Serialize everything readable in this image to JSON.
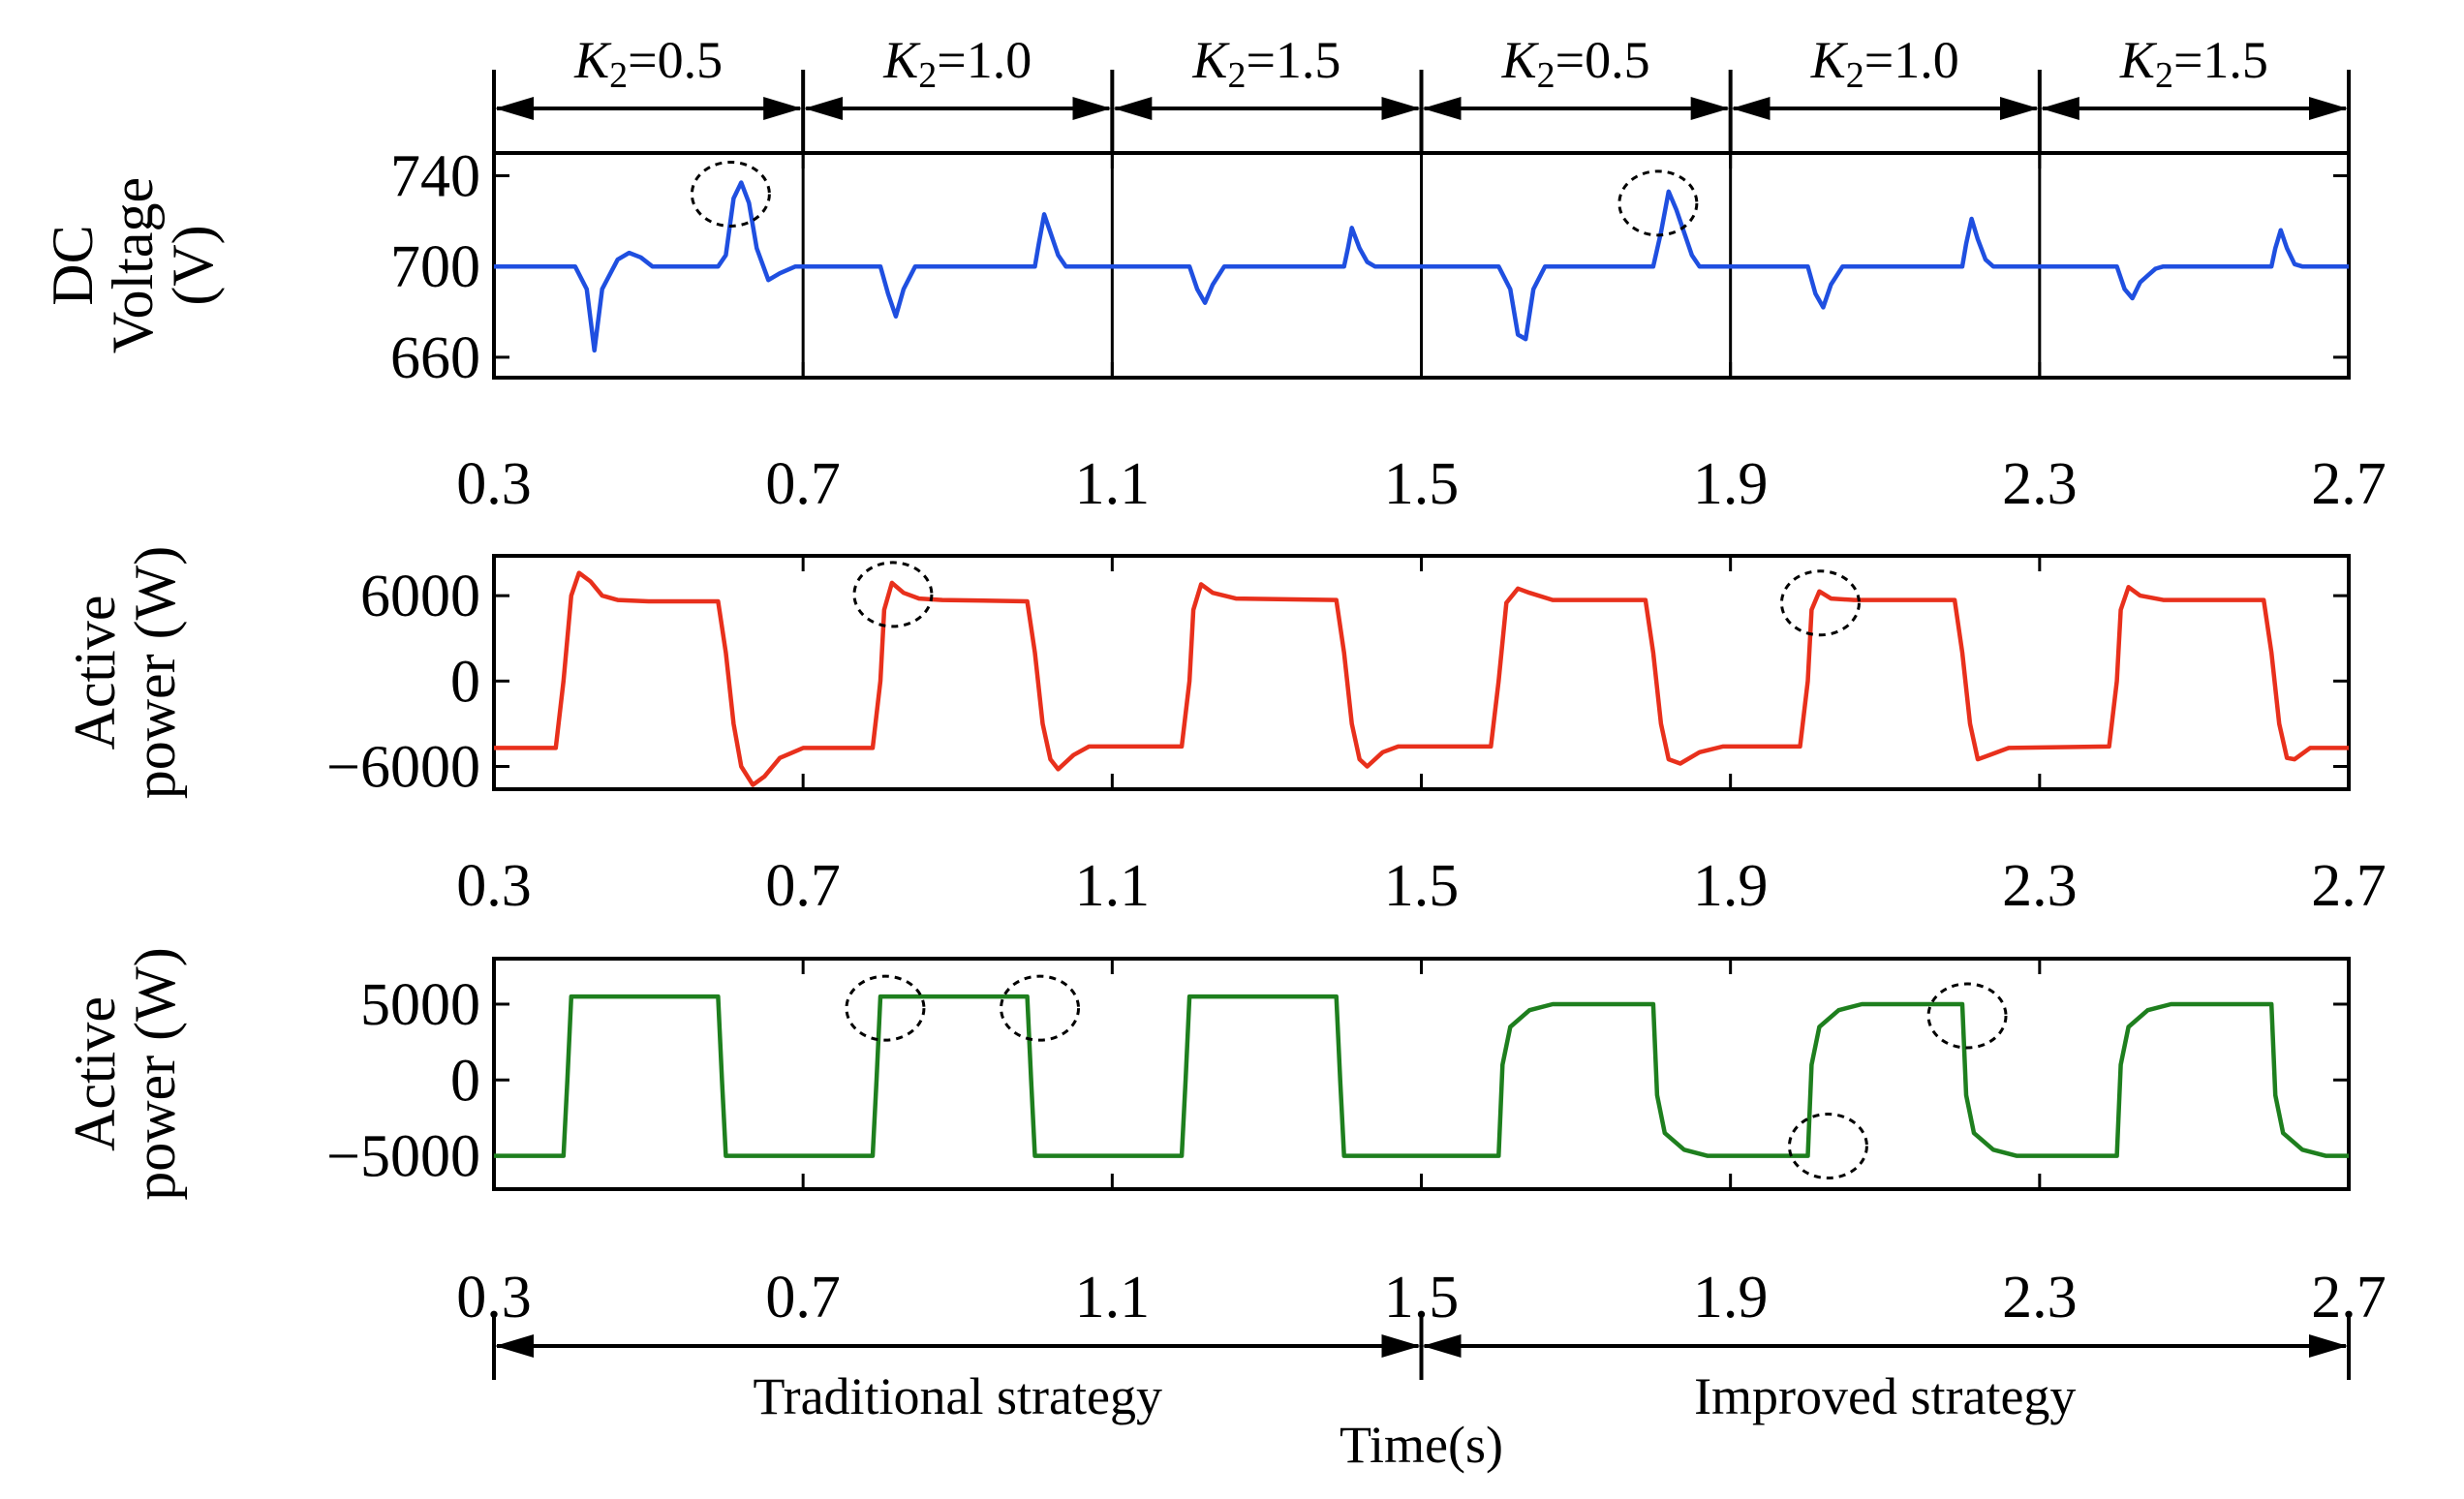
{
  "chart_data": {
    "type": "line",
    "xlabel": "Time(s)",
    "x_ticks": [
      "0.3",
      "0.7",
      "1.1",
      "1.5",
      "1.9",
      "2.3",
      "2.7"
    ],
    "xlim": [
      0.3,
      2.7
    ],
    "segment_labels": [
      {
        "name": "K",
        "sub": "2",
        "value": "=0.5",
        "x0": 0.3,
        "x1": 0.7
      },
      {
        "name": "K",
        "sub": "2",
        "value": "=1.0",
        "x0": 0.7,
        "x1": 1.1
      },
      {
        "name": "K",
        "sub": "2",
        "value": "=1.5",
        "x0": 1.1,
        "x1": 1.5
      },
      {
        "name": "K",
        "sub": "2",
        "value": "=0.5",
        "x0": 1.5,
        "x1": 1.9
      },
      {
        "name": "K",
        "sub": "2",
        "value": "=1.0",
        "x0": 1.9,
        "x1": 2.3
      },
      {
        "name": "K",
        "sub": "2",
        "value": "=1.5",
        "x0": 2.3,
        "x1": 2.7
      }
    ],
    "regions": [
      {
        "label": "Traditional strategy",
        "x0": 0.3,
        "x1": 1.5
      },
      {
        "label": "Improved strategy",
        "x0": 1.5,
        "x1": 2.7
      }
    ],
    "panels": [
      {
        "ylabel_lines": [
          "DC",
          "Voltage",
          "(V)"
        ],
        "yticks": [
          660,
          700,
          740
        ],
        "ylim": [
          651,
          750
        ],
        "color": "#1f4fe0",
        "series": [
          {
            "values": [
              [
                0.3,
                700
              ],
              [
                0.405,
                700
              ],
              [
                0.42,
                690
              ],
              [
                0.43,
                663
              ],
              [
                0.44,
                690
              ],
              [
                0.46,
                703
              ],
              [
                0.475,
                706
              ],
              [
                0.49,
                704
              ],
              [
                0.505,
                700
              ],
              [
                0.59,
                700
              ],
              [
                0.6,
                705
              ],
              [
                0.61,
                730
              ],
              [
                0.62,
                737
              ],
              [
                0.63,
                728
              ],
              [
                0.64,
                708
              ],
              [
                0.655,
                694
              ],
              [
                0.67,
                697
              ],
              [
                0.69,
                700
              ],
              [
                0.8,
                700
              ],
              [
                0.81,
                688
              ],
              [
                0.82,
                678
              ],
              [
                0.83,
                690
              ],
              [
                0.845,
                700
              ],
              [
                1.0,
                700
              ],
              [
                1.005,
                710
              ],
              [
                1.012,
                723
              ],
              [
                1.02,
                715
              ],
              [
                1.03,
                705
              ],
              [
                1.04,
                700
              ],
              [
                1.2,
                700
              ],
              [
                1.21,
                690
              ],
              [
                1.22,
                684
              ],
              [
                1.23,
                692
              ],
              [
                1.245,
                700
              ],
              [
                1.4,
                700
              ],
              [
                1.405,
                708
              ],
              [
                1.41,
                717
              ],
              [
                1.42,
                708
              ],
              [
                1.43,
                702
              ],
              [
                1.44,
                700
              ],
              [
                1.6,
                700
              ],
              [
                1.615,
                690
              ],
              [
                1.625,
                670
              ],
              [
                1.635,
                668
              ],
              [
                1.645,
                690
              ],
              [
                1.66,
                700
              ],
              [
                1.8,
                700
              ],
              [
                1.81,
                715
              ],
              [
                1.82,
                733
              ],
              [
                1.83,
                725
              ],
              [
                1.85,
                705
              ],
              [
                1.86,
                700
              ],
              [
                2.0,
                700
              ],
              [
                2.01,
                688
              ],
              [
                2.02,
                682
              ],
              [
                2.03,
                692
              ],
              [
                2.045,
                700
              ],
              [
                2.2,
                700
              ],
              [
                2.205,
                710
              ],
              [
                2.212,
                721
              ],
              [
                2.22,
                712
              ],
              [
                2.23,
                703
              ],
              [
                2.24,
                700
              ],
              [
                2.4,
                700
              ],
              [
                2.41,
                690
              ],
              [
                2.42,
                686
              ],
              [
                2.43,
                693
              ],
              [
                2.44,
                696
              ],
              [
                2.45,
                699
              ],
              [
                2.46,
                700
              ],
              [
                2.6,
                700
              ],
              [
                2.605,
                708
              ],
              [
                2.612,
                716
              ],
              [
                2.62,
                708
              ],
              [
                2.63,
                701
              ],
              [
                2.64,
                700
              ],
              [
                2.7,
                700
              ]
            ]
          }
        ],
        "highlight_circles_x": [
          0.6,
          1.8
        ]
      },
      {
        "ylabel_lines": [
          "Active",
          "power (W)"
        ],
        "yticks": [
          -6000,
          0,
          6000
        ],
        "ylim": [
          -7600,
          8800
        ],
        "color": "#e8301c",
        "series": [
          {
            "values": [
              [
                0.3,
                -4700
              ],
              [
                0.38,
                -4700
              ],
              [
                0.39,
                0
              ],
              [
                0.4,
                6000
              ],
              [
                0.41,
                7600
              ],
              [
                0.425,
                7000
              ],
              [
                0.44,
                6000
              ],
              [
                0.46,
                5700
              ],
              [
                0.5,
                5600
              ],
              [
                0.59,
                5600
              ],
              [
                0.6,
                2000
              ],
              [
                0.61,
                -3000
              ],
              [
                0.62,
                -6000
              ],
              [
                0.635,
                -7300
              ],
              [
                0.65,
                -6700
              ],
              [
                0.67,
                -5400
              ],
              [
                0.7,
                -4700
              ],
              [
                0.79,
                -4700
              ],
              [
                0.8,
                0
              ],
              [
                0.805,
                5000
              ],
              [
                0.815,
                6900
              ],
              [
                0.83,
                6200
              ],
              [
                0.85,
                5800
              ],
              [
                0.88,
                5700
              ],
              [
                0.99,
                5600
              ],
              [
                1.0,
                2000
              ],
              [
                1.01,
                -3000
              ],
              [
                1.02,
                -5500
              ],
              [
                1.03,
                -6200
              ],
              [
                1.05,
                -5200
              ],
              [
                1.07,
                -4600
              ],
              [
                1.19,
                -4600
              ],
              [
                1.2,
                0
              ],
              [
                1.205,
                5000
              ],
              [
                1.215,
                6800
              ],
              [
                1.23,
                6200
              ],
              [
                1.26,
                5800
              ],
              [
                1.39,
                5700
              ],
              [
                1.4,
                2000
              ],
              [
                1.41,
                -3000
              ],
              [
                1.42,
                -5500
              ],
              [
                1.43,
                -6000
              ],
              [
                1.45,
                -5000
              ],
              [
                1.47,
                -4600
              ],
              [
                1.59,
                -4600
              ],
              [
                1.6,
                0
              ],
              [
                1.61,
                5500
              ],
              [
                1.625,
                6500
              ],
              [
                1.64,
                6200
              ],
              [
                1.67,
                5700
              ],
              [
                1.79,
                5700
              ],
              [
                1.8,
                2000
              ],
              [
                1.81,
                -3000
              ],
              [
                1.82,
                -5500
              ],
              [
                1.835,
                -5800
              ],
              [
                1.86,
                -5000
              ],
              [
                1.89,
                -4600
              ],
              [
                1.99,
                -4600
              ],
              [
                2.0,
                0
              ],
              [
                2.005,
                5000
              ],
              [
                2.015,
                6300
              ],
              [
                2.03,
                5800
              ],
              [
                2.06,
                5700
              ],
              [
                2.19,
                5700
              ],
              [
                2.2,
                2000
              ],
              [
                2.21,
                -3000
              ],
              [
                2.22,
                -5500
              ],
              [
                2.23,
                -5300
              ],
              [
                2.26,
                -4700
              ],
              [
                2.39,
                -4600
              ],
              [
                2.4,
                0
              ],
              [
                2.405,
                5000
              ],
              [
                2.415,
                6600
              ],
              [
                2.43,
                6000
              ],
              [
                2.46,
                5700
              ],
              [
                2.59,
                5700
              ],
              [
                2.6,
                2000
              ],
              [
                2.61,
                -3000
              ],
              [
                2.62,
                -5400
              ],
              [
                2.63,
                -5500
              ],
              [
                2.65,
                -4700
              ],
              [
                2.7,
                -4700
              ]
            ]
          }
        ],
        "highlight_circles_x": [
          0.81,
          2.01
        ]
      },
      {
        "ylabel_lines": [
          "Active",
          "power (W)"
        ],
        "yticks": [
          -5000,
          0,
          5000
        ],
        "ylim": [
          -7200,
          8000
        ],
        "color": "#1e7f1e",
        "series": [
          {
            "values": [
              [
                0.3,
                -5000
              ],
              [
                0.39,
                -5000
              ],
              [
                0.395,
                0
              ],
              [
                0.4,
                5500
              ],
              [
                0.59,
                5500
              ],
              [
                0.595,
                0
              ],
              [
                0.6,
                -5000
              ],
              [
                0.79,
                -5000
              ],
              [
                0.795,
                0
              ],
              [
                0.8,
                5500
              ],
              [
                0.99,
                5500
              ],
              [
                0.995,
                0
              ],
              [
                1.0,
                -5000
              ],
              [
                1.19,
                -5000
              ],
              [
                1.195,
                0
              ],
              [
                1.2,
                5500
              ],
              [
                1.39,
                5500
              ],
              [
                1.395,
                0
              ],
              [
                1.4,
                -5000
              ],
              [
                1.6,
                -5000
              ],
              [
                1.605,
                1000
              ],
              [
                1.615,
                3500
              ],
              [
                1.64,
                4600
              ],
              [
                1.67,
                5000
              ],
              [
                1.8,
                5000
              ],
              [
                1.805,
                -1000
              ],
              [
                1.815,
                -3500
              ],
              [
                1.84,
                -4600
              ],
              [
                1.87,
                -5000
              ],
              [
                2.0,
                -5000
              ],
              [
                2.005,
                1000
              ],
              [
                2.015,
                3500
              ],
              [
                2.04,
                4600
              ],
              [
                2.07,
                5000
              ],
              [
                2.2,
                5000
              ],
              [
                2.205,
                -1000
              ],
              [
                2.215,
                -3500
              ],
              [
                2.24,
                -4600
              ],
              [
                2.27,
                -5000
              ],
              [
                2.4,
                -5000
              ],
              [
                2.405,
                1000
              ],
              [
                2.415,
                3500
              ],
              [
                2.44,
                4600
              ],
              [
                2.47,
                5000
              ],
              [
                2.6,
                5000
              ],
              [
                2.605,
                -1000
              ],
              [
                2.615,
                -3500
              ],
              [
                2.64,
                -4600
              ],
              [
                2.67,
                -5000
              ],
              [
                2.7,
                -5000
              ]
            ]
          }
        ],
        "highlight_circles_x": [
          0.8,
          1.0,
          2.02,
          2.2
        ]
      }
    ]
  }
}
